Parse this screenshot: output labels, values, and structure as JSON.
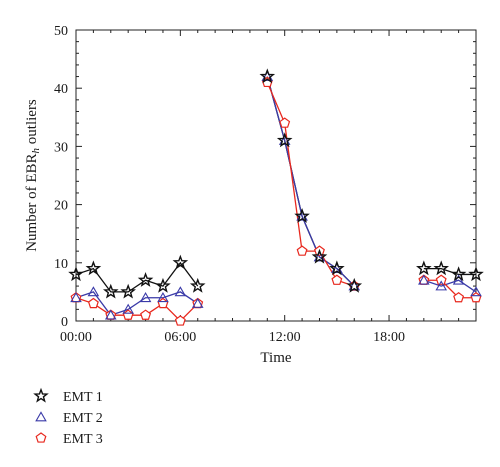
{
  "chart_data": {
    "type": "line",
    "xlabel": "Time",
    "ylabel_main": "Number of EBR",
    "ylabel_sub": "h",
    "ylabel_tail": " outliers",
    "xlim": [
      0,
      23
    ],
    "ylim": [
      0,
      50
    ],
    "x_ticks": [
      0,
      6,
      12,
      18
    ],
    "x_tick_labels": [
      "00:00",
      "06:00",
      "12:00",
      "18:00"
    ],
    "y_ticks": [
      0,
      10,
      20,
      30,
      40,
      50
    ],
    "y_tick_labels": [
      "0",
      "10",
      "20",
      "30",
      "40",
      "50"
    ],
    "grid": false,
    "legend_position": "below",
    "series": [
      {
        "name": "EMT 1",
        "color": "#111111",
        "marker": "star",
        "segments": [
          [
            [
              0,
              8
            ],
            [
              1,
              9
            ],
            [
              2,
              5
            ],
            [
              3,
              5
            ],
            [
              4,
              7
            ],
            [
              5,
              6
            ],
            [
              6,
              10
            ],
            [
              7,
              6
            ]
          ],
          [
            [
              11,
              42
            ],
            [
              12,
              31
            ],
            [
              13,
              18
            ],
            [
              14,
              11
            ],
            [
              15,
              9
            ],
            [
              16,
              6
            ]
          ],
          [
            [
              20,
              9
            ],
            [
              21,
              9
            ],
            [
              22,
              8
            ],
            [
              23,
              8
            ]
          ]
        ]
      },
      {
        "name": "EMT 2",
        "color": "#3a3aa8",
        "marker": "triangle",
        "segments": [
          [
            [
              0,
              4
            ],
            [
              1,
              5
            ],
            [
              2,
              1
            ],
            [
              3,
              2
            ],
            [
              4,
              4
            ],
            [
              5,
              4
            ],
            [
              6,
              5
            ],
            [
              7,
              3
            ]
          ],
          [
            [
              11,
              42
            ],
            [
              12,
              31
            ],
            [
              13,
              18
            ],
            [
              14,
              11
            ],
            [
              15,
              9
            ],
            [
              16,
              6
            ]
          ],
          [
            [
              20,
              7
            ],
            [
              21,
              6
            ],
            [
              22,
              7
            ],
            [
              23,
              5
            ]
          ]
        ]
      },
      {
        "name": "EMT 3",
        "color": "#e8281e",
        "marker": "pentagon",
        "segments": [
          [
            [
              0,
              4
            ],
            [
              1,
              3
            ],
            [
              2,
              1
            ],
            [
              3,
              1
            ],
            [
              4,
              1
            ],
            [
              5,
              3
            ],
            [
              6,
              0
            ],
            [
              7,
              3
            ]
          ],
          [
            [
              11,
              41
            ],
            [
              12,
              34
            ],
            [
              13,
              12
            ],
            [
              14,
              12
            ],
            [
              15,
              7
            ],
            [
              16,
              6
            ]
          ],
          [
            [
              20,
              7
            ],
            [
              21,
              7
            ],
            [
              22,
              4
            ],
            [
              23,
              4
            ]
          ]
        ]
      }
    ]
  }
}
